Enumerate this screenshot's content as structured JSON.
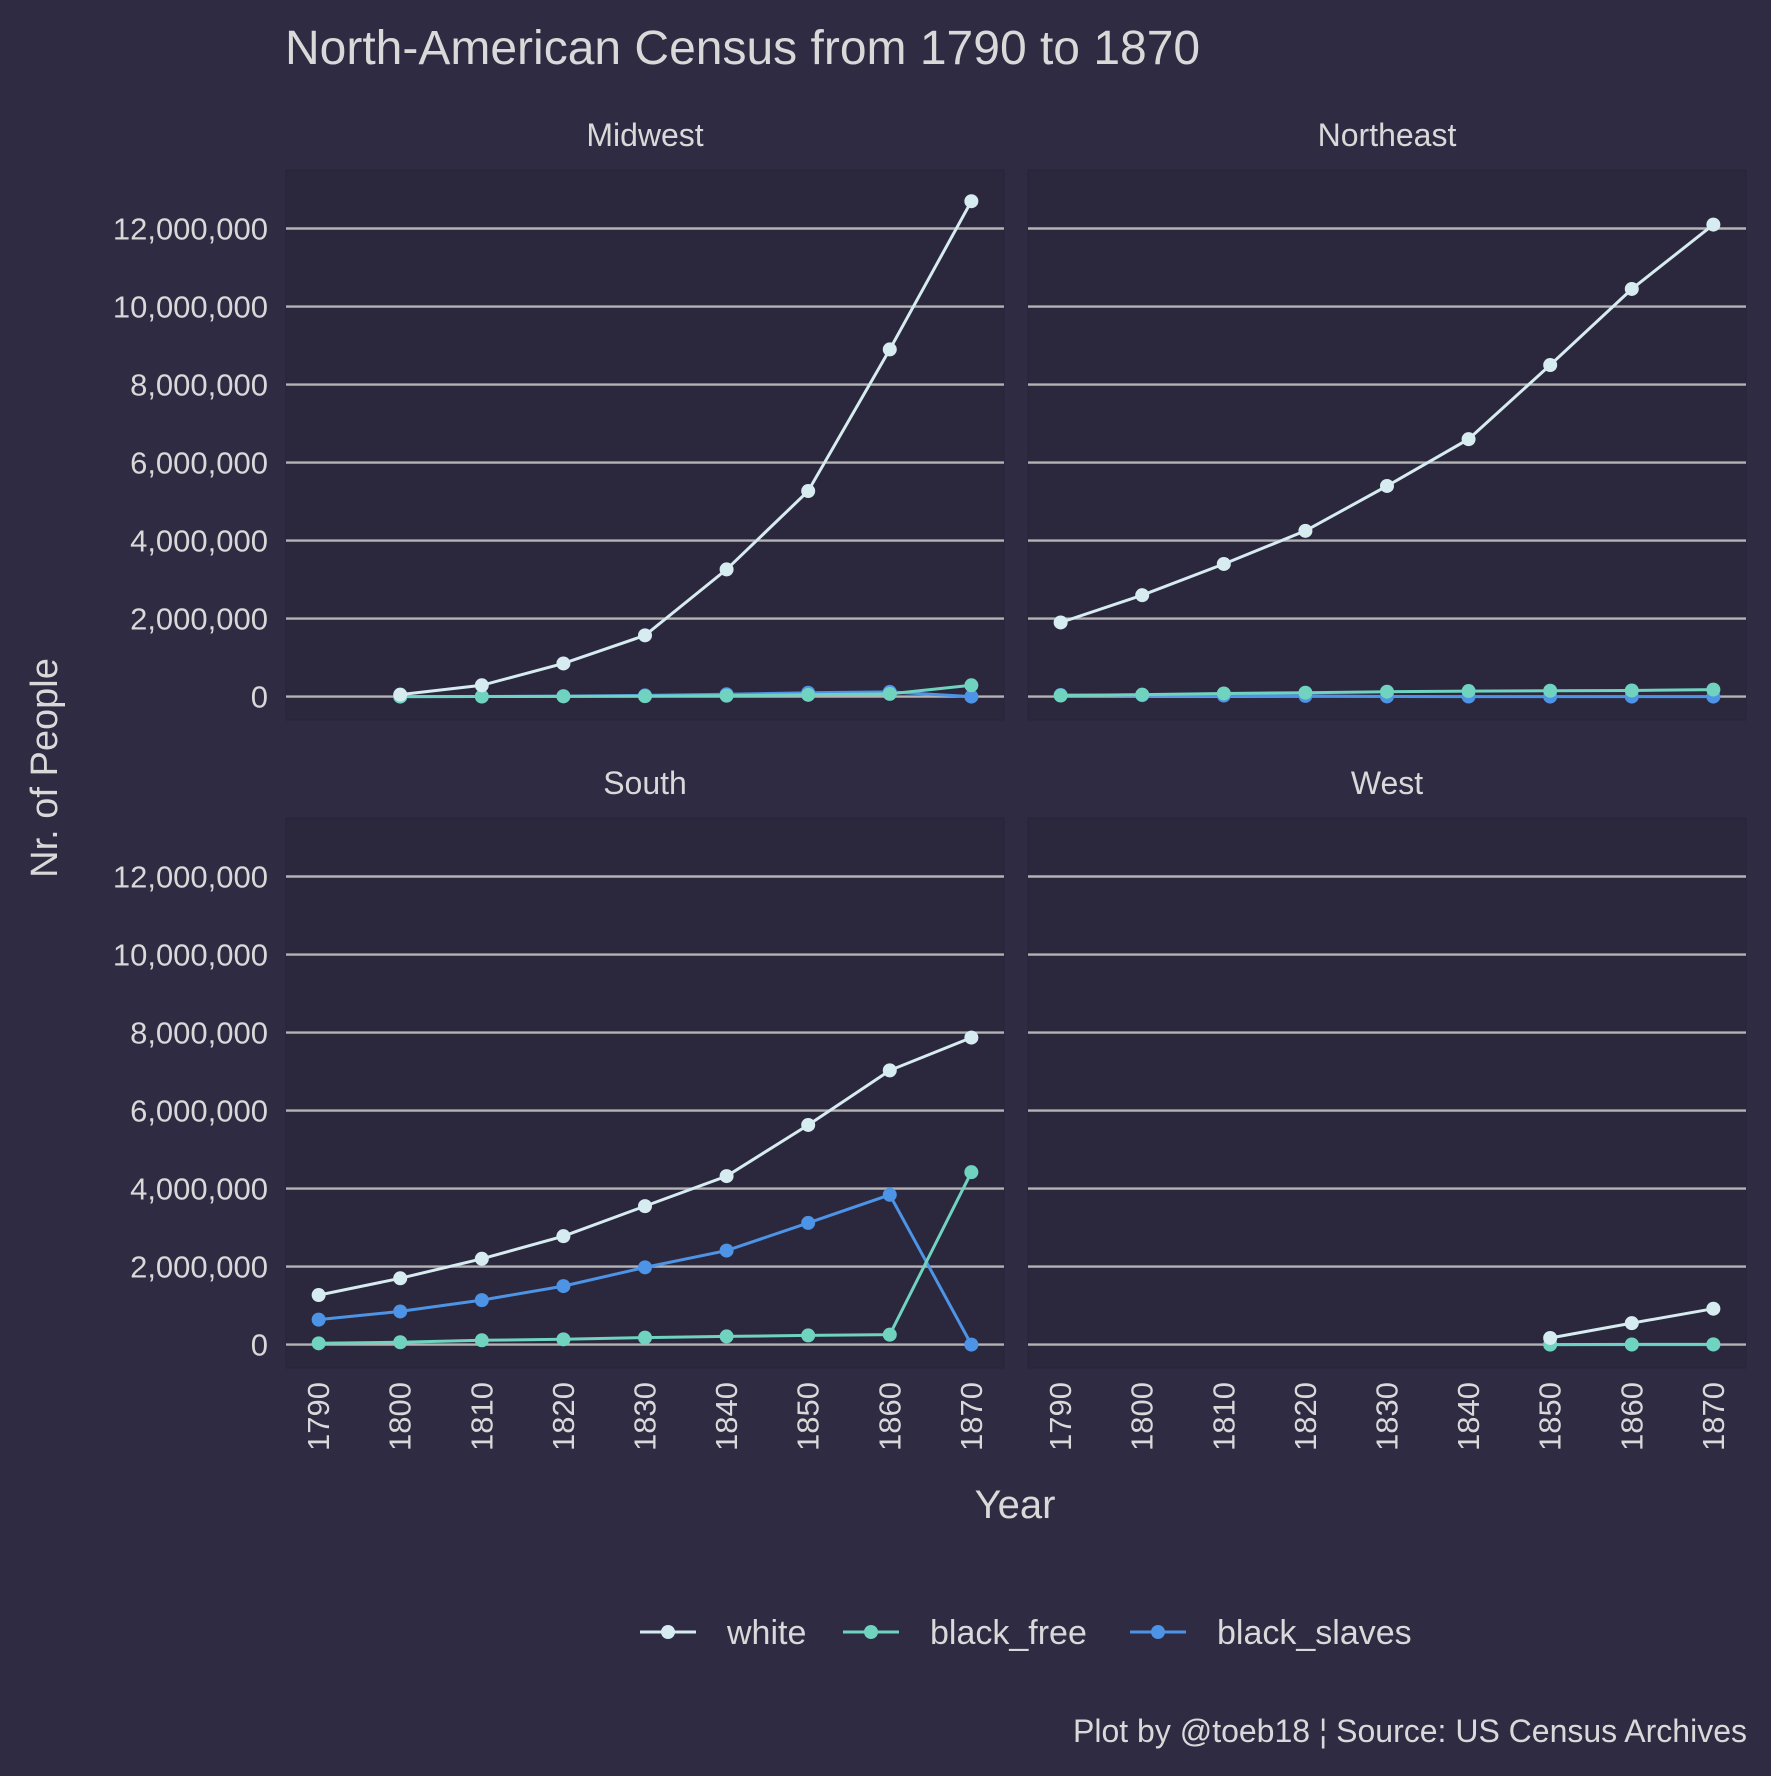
{
  "colors": {
    "background": "#2e2b42",
    "panel_background": "#2b283d",
    "gridline": "#b3b3b3",
    "text": "#d9d9d9",
    "white": "#d6ecf1",
    "black_free": "#6fd3c0",
    "black_slaves": "#4d93e6"
  },
  "chart_data": {
    "type": "line",
    "title": "North-American Census from 1790 to 1870",
    "xlabel": "Year",
    "ylabel": "Nr. of People",
    "caption": "Plot by @toeb18 ¦ Source: US Census Archives",
    "x_ticks": [
      1790,
      1800,
      1810,
      1820,
      1830,
      1840,
      1850,
      1860,
      1870
    ],
    "y_ticks": [
      0,
      2000000,
      4000000,
      6000000,
      8000000,
      10000000,
      12000000
    ],
    "y_tick_labels": [
      "0",
      "2,000,000",
      "4,000,000",
      "6,000,000",
      "8,000,000",
      "10,000,000",
      "12,000,000"
    ],
    "xlim": [
      1786,
      1874
    ],
    "ylim": [
      -600000,
      13500000
    ],
    "grid": "horizontal major lines",
    "legend_position": "bottom",
    "legend": [
      "white",
      "black_free",
      "black_slaves"
    ],
    "panels": [
      {
        "name": "Midwest",
        "series": [
          {
            "name": "white",
            "x": [
              1800,
              1810,
              1820,
              1830,
              1840,
              1850,
              1860,
              1870
            ],
            "values": [
              50000,
              290000,
              850000,
              1570000,
              3260000,
              5270000,
              8900000,
              12700000
            ]
          },
          {
            "name": "black_free",
            "x": [
              1800,
              1810,
              1820,
              1830,
              1840,
              1850,
              1860,
              1870
            ],
            "values": [
              0,
              2000,
              6000,
              12000,
              25000,
              45000,
              70000,
              290000
            ]
          },
          {
            "name": "black_slaves",
            "x": [
              1800,
              1810,
              1820,
              1830,
              1840,
              1850,
              1860,
              1870
            ],
            "values": [
              0,
              3000,
              12000,
              30000,
              60000,
              100000,
              120000,
              0
            ]
          }
        ]
      },
      {
        "name": "Northeast",
        "series": [
          {
            "name": "white",
            "x": [
              1790,
              1800,
              1810,
              1820,
              1830,
              1840,
              1850,
              1860,
              1870
            ],
            "values": [
              1900000,
              2600000,
              3400000,
              4250000,
              5400000,
              6600000,
              8500000,
              10450000,
              12100000
            ]
          },
          {
            "name": "black_free",
            "x": [
              1790,
              1800,
              1810,
              1820,
              1830,
              1840,
              1850,
              1860,
              1870
            ],
            "values": [
              27000,
              50000,
              80000,
              100000,
              125000,
              142000,
              150000,
              156000,
              180000
            ]
          },
          {
            "name": "black_slaves",
            "x": [
              1790,
              1800,
              1810,
              1820,
              1830,
              1840,
              1850,
              1860,
              1870
            ],
            "values": [
              40000,
              36000,
              27000,
              18000,
              3000,
              1000,
              0,
              0,
              0
            ]
          }
        ]
      },
      {
        "name": "South",
        "series": [
          {
            "name": "white",
            "x": [
              1790,
              1800,
              1810,
              1820,
              1830,
              1840,
              1850,
              1860,
              1870
            ],
            "values": [
              1270000,
              1700000,
              2200000,
              2780000,
              3550000,
              4320000,
              5630000,
              7030000,
              7870000
            ]
          },
          {
            "name": "black_free",
            "x": [
              1790,
              1800,
              1810,
              1820,
              1830,
              1840,
              1850,
              1860,
              1870
            ],
            "values": [
              32000,
              60000,
              110000,
              135000,
              180000,
              210000,
              235000,
              255000,
              4420000
            ]
          },
          {
            "name": "black_slaves",
            "x": [
              1790,
              1800,
              1810,
              1820,
              1830,
              1840,
              1850,
              1860,
              1870
            ],
            "values": [
              640000,
              850000,
              1140000,
              1500000,
              1980000,
              2410000,
              3120000,
              3840000,
              0
            ]
          }
        ]
      },
      {
        "name": "West",
        "series": [
          {
            "name": "white",
            "x": [
              1850,
              1860,
              1870
            ],
            "values": [
              170000,
              550000,
              920000
            ]
          },
          {
            "name": "black_free",
            "x": [
              1850,
              1860,
              1870
            ],
            "values": [
              1000,
              4000,
              6000
            ]
          },
          {
            "name": "black_slaves",
            "x": [
              1850,
              1860,
              1870
            ],
            "values": [
              0,
              0,
              0
            ]
          }
        ]
      }
    ]
  }
}
